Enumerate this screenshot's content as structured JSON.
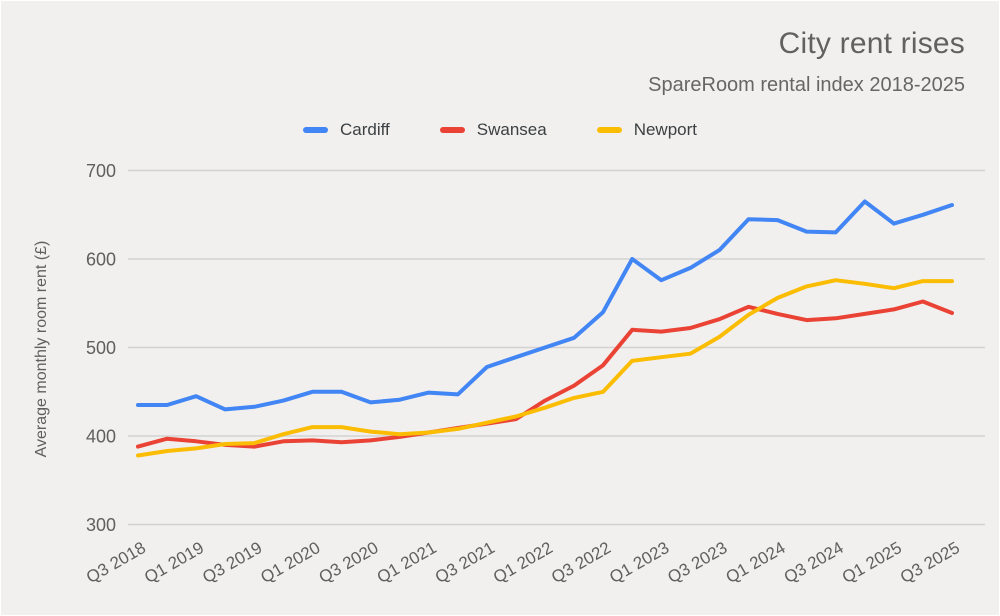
{
  "title": "City rent rises",
  "subtitle": "SpareRoom rental index 2018-2025",
  "colors": {
    "background": "#f1f0ee",
    "grid": "#d3d2d0",
    "tick_text": "#5f5f5f",
    "axis_title_text": "#5f5f5f",
    "title_text": "#616161",
    "legend_text": "#3c4043"
  },
  "chart_data": {
    "type": "line",
    "title": "City rent rises",
    "subtitle": "SpareRoom rental index 2018-2025",
    "xlabel": "",
    "ylabel": "Average monthly room rent (£)",
    "ylim": [
      300,
      700
    ],
    "yticks": [
      300,
      400,
      500,
      600,
      700
    ],
    "grid": "horizontal gridlines only",
    "legend_position": "top-center",
    "x_tick_labels": [
      "Q3 2018",
      "Q1 2019",
      "Q3 2019",
      "Q1 2020",
      "Q3 2020",
      "Q1 2021",
      "Q3 2021",
      "Q1 2022",
      "Q3 2022",
      "Q1 2023",
      "Q3 2023",
      "Q1 2024",
      "Q3 2024",
      "Q1 2025",
      "Q3 2025"
    ],
    "x": [
      "Q3 2018",
      "Q4 2018",
      "Q1 2019",
      "Q2 2019",
      "Q3 2019",
      "Q4 2019",
      "Q1 2020",
      "Q2 2020",
      "Q3 2020",
      "Q4 2020",
      "Q1 2021",
      "Q2 2021",
      "Q3 2021",
      "Q4 2021",
      "Q1 2022",
      "Q2 2022",
      "Q3 2022",
      "Q4 2022",
      "Q1 2023",
      "Q2 2023",
      "Q3 2023",
      "Q4 2023",
      "Q1 2024",
      "Q2 2024",
      "Q3 2024",
      "Q4 2024",
      "Q1 2025",
      "Q2 2025",
      "Q3 2025"
    ],
    "series": [
      {
        "name": "Cardiff",
        "color": "#4285f4",
        "values": [
          435,
          435,
          445,
          430,
          433,
          440,
          450,
          450,
          438,
          441,
          449,
          447,
          478,
          489,
          500,
          511,
          540,
          600,
          576,
          590,
          610,
          645,
          644,
          631,
          630,
          665,
          640,
          650,
          661
        ]
      },
      {
        "name": "Swansea",
        "color": "#ea4335",
        "values": [
          388,
          397,
          394,
          390,
          388,
          394,
          395,
          393,
          395,
          399,
          404,
          409,
          414,
          419,
          440,
          457,
          480,
          520,
          518,
          522,
          532,
          546,
          538,
          531,
          533,
          538,
          543,
          552,
          539
        ]
      },
      {
        "name": "Newport",
        "color": "#fbbc04",
        "values": [
          378,
          383,
          386,
          391,
          392,
          402,
          410,
          410,
          405,
          402,
          404,
          408,
          415,
          422,
          432,
          443,
          450,
          485,
          489,
          493,
          512,
          537,
          556,
          569,
          576,
          572,
          567,
          575,
          575
        ]
      }
    ]
  }
}
